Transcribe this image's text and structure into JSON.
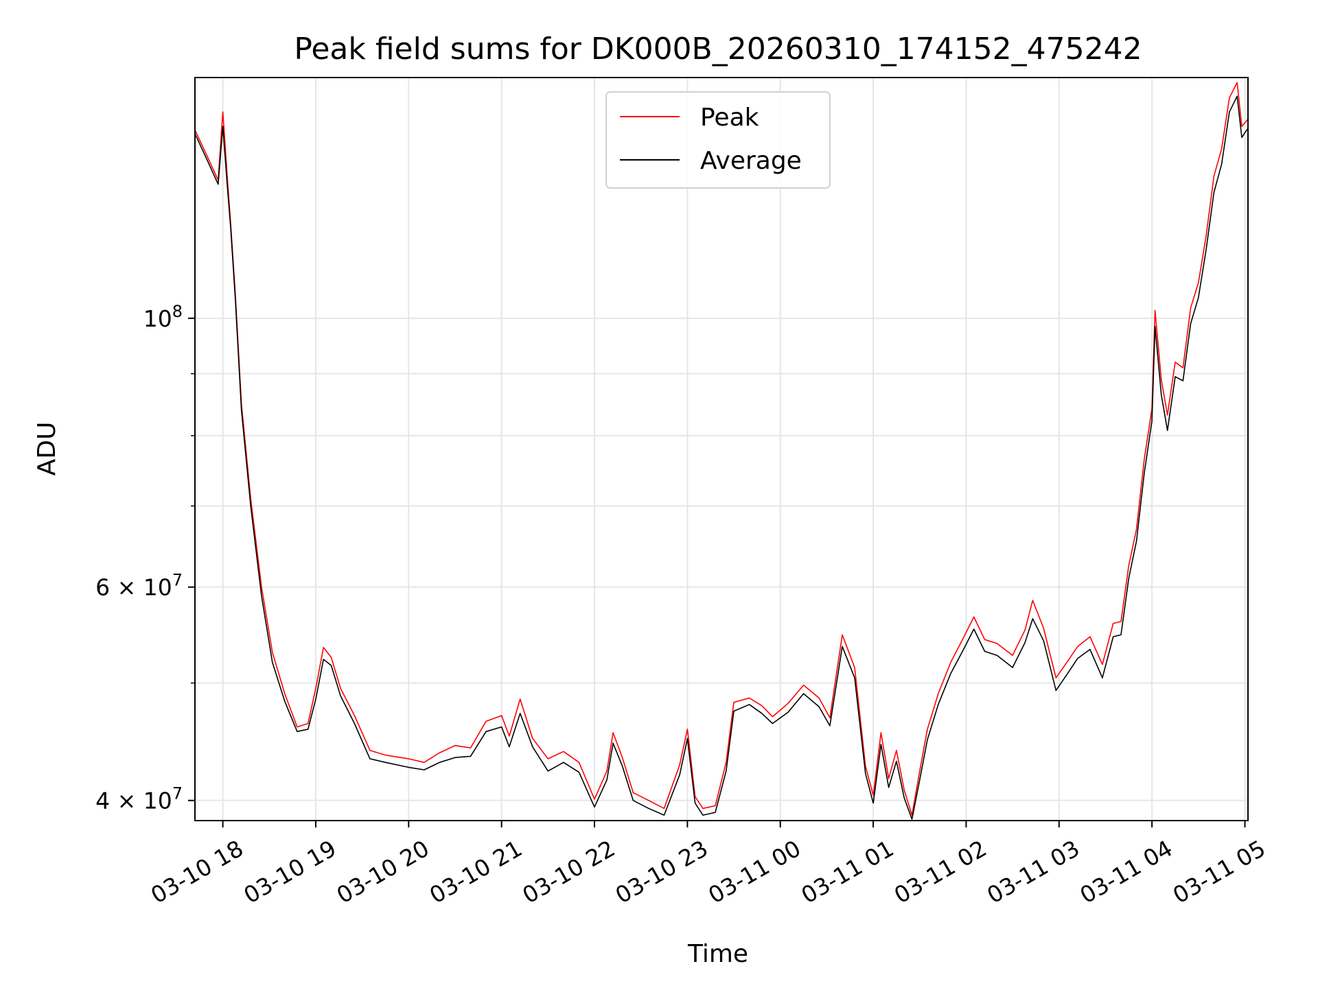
{
  "chart_data": {
    "type": "line",
    "title": "Peak field sums for DK000B_20260310_174152_475242",
    "xlabel": "Time",
    "ylabel": "ADU",
    "y_scale": "log",
    "ylim": [
      38500000,
      158000000
    ],
    "xlim": [
      "2026-03-10 17:42",
      "2026-03-11 05:02"
    ],
    "grid": true,
    "legend_position": "upper center",
    "x_ticks": [
      {
        "value": "2026-03-10 18:00",
        "label": "03-10 18"
      },
      {
        "value": "2026-03-10 19:00",
        "label": "03-10 19"
      },
      {
        "value": "2026-03-10 20:00",
        "label": "03-10 20"
      },
      {
        "value": "2026-03-10 21:00",
        "label": "03-10 21"
      },
      {
        "value": "2026-03-10 22:00",
        "label": "03-10 22"
      },
      {
        "value": "2026-03-10 23:00",
        "label": "03-10 23"
      },
      {
        "value": "2026-03-11 00:00",
        "label": "03-11 00"
      },
      {
        "value": "2026-03-11 01:00",
        "label": "03-11 01"
      },
      {
        "value": "2026-03-11 02:00",
        "label": "03-11 02"
      },
      {
        "value": "2026-03-11 03:00",
        "label": "03-11 03"
      },
      {
        "value": "2026-03-11 04:00",
        "label": "03-11 04"
      },
      {
        "value": "2026-03-11 05:00",
        "label": "03-11 05"
      }
    ],
    "y_ticks": [
      {
        "value": 40000000,
        "base": "4 × 10",
        "exp": "7"
      },
      {
        "value": 60000000,
        "base": "6 × 10",
        "exp": "7"
      },
      {
        "value": 100000000,
        "base": "10",
        "exp": "8"
      }
    ],
    "y_minor_ticks": [
      50000000,
      70000000,
      80000000,
      90000000
    ],
    "series": [
      {
        "name": "Peak",
        "color": "#ff0000",
        "points": [
          [
            "2026-03-10 17:42",
            143000000
          ],
          [
            "2026-03-10 17:50",
            136000000
          ],
          [
            "2026-03-10 17:57",
            130000000
          ],
          [
            "2026-03-10 18:00",
            148000000
          ],
          [
            "2026-03-10 18:03",
            130000000
          ],
          [
            "2026-03-10 18:05",
            120000000
          ],
          [
            "2026-03-10 18:08",
            105000000
          ],
          [
            "2026-03-10 18:12",
            85000000
          ],
          [
            "2026-03-10 18:18",
            71000000
          ],
          [
            "2026-03-10 18:25",
            60000000
          ],
          [
            "2026-03-10 18:32",
            53000000
          ],
          [
            "2026-03-10 18:40",
            49000000
          ],
          [
            "2026-03-10 18:48",
            46000000
          ],
          [
            "2026-03-10 18:55",
            46300000
          ],
          [
            "2026-03-10 19:00",
            49500000
          ],
          [
            "2026-03-10 19:05",
            53500000
          ],
          [
            "2026-03-10 19:10",
            52500000
          ],
          [
            "2026-03-10 19:16",
            49500000
          ],
          [
            "2026-03-10 19:25",
            47000000
          ],
          [
            "2026-03-10 19:35",
            44000000
          ],
          [
            "2026-03-10 19:45",
            43600000
          ],
          [
            "2026-03-10 20:00",
            43300000
          ],
          [
            "2026-03-10 20:10",
            43000000
          ],
          [
            "2026-03-10 20:20",
            43800000
          ],
          [
            "2026-03-10 20:30",
            44400000
          ],
          [
            "2026-03-10 20:40",
            44200000
          ],
          [
            "2026-03-10 20:50",
            46500000
          ],
          [
            "2026-03-10 21:00",
            47000000
          ],
          [
            "2026-03-10 21:05",
            45200000
          ],
          [
            "2026-03-10 21:12",
            48500000
          ],
          [
            "2026-03-10 21:20",
            45000000
          ],
          [
            "2026-03-10 21:30",
            43300000
          ],
          [
            "2026-03-10 21:40",
            43900000
          ],
          [
            "2026-03-10 21:50",
            43000000
          ],
          [
            "2026-03-10 22:00",
            40100000
          ],
          [
            "2026-03-10 22:08",
            42300000
          ],
          [
            "2026-03-10 22:12",
            45500000
          ],
          [
            "2026-03-10 22:18",
            43400000
          ],
          [
            "2026-03-10 22:25",
            40600000
          ],
          [
            "2026-03-10 22:35",
            40000000
          ],
          [
            "2026-03-10 22:45",
            39400000
          ],
          [
            "2026-03-10 22:55",
            42800000
          ],
          [
            "2026-03-10 23:00",
            45800000
          ],
          [
            "2026-03-10 23:05",
            40300000
          ],
          [
            "2026-03-10 23:10",
            39400000
          ],
          [
            "2026-03-10 23:18",
            39600000
          ],
          [
            "2026-03-10 23:25",
            43000000
          ],
          [
            "2026-03-10 23:30",
            48200000
          ],
          [
            "2026-03-10 23:40",
            48600000
          ],
          [
            "2026-03-10 23:48",
            47900000
          ],
          [
            "2026-03-10 23:55",
            46900000
          ],
          [
            "2026-03-11 00:05",
            48100000
          ],
          [
            "2026-03-11 00:15",
            49800000
          ],
          [
            "2026-03-11 00:25",
            48600000
          ],
          [
            "2026-03-11 00:32",
            46800000
          ],
          [
            "2026-03-11 00:40",
            54800000
          ],
          [
            "2026-03-11 00:48",
            51500000
          ],
          [
            "2026-03-11 00:55",
            42700000
          ],
          [
            "2026-03-11 01:00",
            40400000
          ],
          [
            "2026-03-11 01:05",
            45500000
          ],
          [
            "2026-03-11 01:10",
            41700000
          ],
          [
            "2026-03-11 01:15",
            44000000
          ],
          [
            "2026-03-11 01:20",
            40800000
          ],
          [
            "2026-03-11 01:25",
            38900000
          ],
          [
            "2026-03-11 01:30",
            42300000
          ],
          [
            "2026-03-11 01:35",
            45800000
          ],
          [
            "2026-03-11 01:42",
            49000000
          ],
          [
            "2026-03-11 01:50",
            52000000
          ],
          [
            "2026-03-11 01:58",
            54400000
          ],
          [
            "2026-03-11 02:05",
            56700000
          ],
          [
            "2026-03-11 02:12",
            54300000
          ],
          [
            "2026-03-11 02:20",
            53900000
          ],
          [
            "2026-03-11 02:30",
            52700000
          ],
          [
            "2026-03-11 02:38",
            55300000
          ],
          [
            "2026-03-11 02:43",
            58500000
          ],
          [
            "2026-03-11 02:50",
            55500000
          ],
          [
            "2026-03-11 02:58",
            50500000
          ],
          [
            "2026-03-11 03:05",
            52000000
          ],
          [
            "2026-03-11 03:12",
            53600000
          ],
          [
            "2026-03-11 03:20",
            54600000
          ],
          [
            "2026-03-11 03:28",
            51800000
          ],
          [
            "2026-03-11 03:35",
            56000000
          ],
          [
            "2026-03-11 03:40",
            56200000
          ],
          [
            "2026-03-11 03:45",
            62500000
          ],
          [
            "2026-03-11 03:50",
            67000000
          ],
          [
            "2026-03-11 03:55",
            76500000
          ],
          [
            "2026-03-11 04:00",
            84200000
          ],
          [
            "2026-03-11 04:02",
            101500000
          ],
          [
            "2026-03-11 04:06",
            89000000
          ],
          [
            "2026-03-11 04:10",
            83200000
          ],
          [
            "2026-03-11 04:15",
            92000000
          ],
          [
            "2026-03-11 04:20",
            91000000
          ],
          [
            "2026-03-11 04:25",
            102000000
          ],
          [
            "2026-03-11 04:30",
            107000000
          ],
          [
            "2026-03-11 04:35",
            117000000
          ],
          [
            "2026-03-11 04:40",
            131000000
          ],
          [
            "2026-03-11 04:45",
            138000000
          ],
          [
            "2026-03-11 04:50",
            152000000
          ],
          [
            "2026-03-11 04:55",
            156500000
          ],
          [
            "2026-03-11 04:58",
            144000000
          ],
          [
            "2026-03-11 05:02",
            146000000
          ]
        ]
      },
      {
        "name": "Average",
        "color": "#000000",
        "points": [
          [
            "2026-03-10 17:42",
            142000000
          ],
          [
            "2026-03-10 17:50",
            135000000
          ],
          [
            "2026-03-10 17:57",
            129000000
          ],
          [
            "2026-03-10 18:00",
            144000000
          ],
          [
            "2026-03-10 18:03",
            128000000
          ],
          [
            "2026-03-10 18:05",
            119000000
          ],
          [
            "2026-03-10 18:08",
            104000000
          ],
          [
            "2026-03-10 18:12",
            84000000
          ],
          [
            "2026-03-10 18:18",
            70000000
          ],
          [
            "2026-03-10 18:25",
            59000000
          ],
          [
            "2026-03-10 18:32",
            52000000
          ],
          [
            "2026-03-10 18:40",
            48300000
          ],
          [
            "2026-03-10 18:48",
            45600000
          ],
          [
            "2026-03-10 18:55",
            45800000
          ],
          [
            "2026-03-10 19:00",
            48500000
          ],
          [
            "2026-03-10 19:05",
            52300000
          ],
          [
            "2026-03-10 19:10",
            51700000
          ],
          [
            "2026-03-10 19:16",
            48800000
          ],
          [
            "2026-03-10 19:25",
            46300000
          ],
          [
            "2026-03-10 19:35",
            43300000
          ],
          [
            "2026-03-10 19:45",
            43000000
          ],
          [
            "2026-03-10 20:00",
            42600000
          ],
          [
            "2026-03-10 20:10",
            42400000
          ],
          [
            "2026-03-10 20:20",
            43000000
          ],
          [
            "2026-03-10 20:30",
            43400000
          ],
          [
            "2026-03-10 20:40",
            43500000
          ],
          [
            "2026-03-10 20:50",
            45600000
          ],
          [
            "2026-03-10 21:00",
            46000000
          ],
          [
            "2026-03-10 21:05",
            44300000
          ],
          [
            "2026-03-10 21:12",
            47200000
          ],
          [
            "2026-03-10 21:20",
            44300000
          ],
          [
            "2026-03-10 21:30",
            42300000
          ],
          [
            "2026-03-10 21:40",
            43000000
          ],
          [
            "2026-03-10 21:50",
            42200000
          ],
          [
            "2026-03-10 22:00",
            39500000
          ],
          [
            "2026-03-10 22:08",
            41600000
          ],
          [
            "2026-03-10 22:12",
            44600000
          ],
          [
            "2026-03-10 22:18",
            42700000
          ],
          [
            "2026-03-10 22:25",
            40000000
          ],
          [
            "2026-03-10 22:35",
            39400000
          ],
          [
            "2026-03-10 22:45",
            38900000
          ],
          [
            "2026-03-10 22:55",
            42000000
          ],
          [
            "2026-03-10 23:00",
            45000000
          ],
          [
            "2026-03-10 23:05",
            39800000
          ],
          [
            "2026-03-10 23:10",
            38900000
          ],
          [
            "2026-03-10 23:18",
            39100000
          ],
          [
            "2026-03-10 23:25",
            42300000
          ],
          [
            "2026-03-10 23:30",
            47400000
          ],
          [
            "2026-03-10 23:40",
            48000000
          ],
          [
            "2026-03-10 23:48",
            47200000
          ],
          [
            "2026-03-10 23:55",
            46300000
          ],
          [
            "2026-03-11 00:05",
            47300000
          ],
          [
            "2026-03-11 00:15",
            49000000
          ],
          [
            "2026-03-11 00:25",
            47800000
          ],
          [
            "2026-03-11 00:32",
            46100000
          ],
          [
            "2026-03-11 00:40",
            53600000
          ],
          [
            "2026-03-11 00:48",
            50500000
          ],
          [
            "2026-03-11 00:55",
            42100000
          ],
          [
            "2026-03-11 01:00",
            39800000
          ],
          [
            "2026-03-11 01:05",
            44500000
          ],
          [
            "2026-03-11 01:10",
            41000000
          ],
          [
            "2026-03-11 01:15",
            43100000
          ],
          [
            "2026-03-11 01:20",
            40200000
          ],
          [
            "2026-03-11 01:25",
            38600000
          ],
          [
            "2026-03-11 01:30",
            41600000
          ],
          [
            "2026-03-11 01:35",
            44900000
          ],
          [
            "2026-03-11 01:42",
            48000000
          ],
          [
            "2026-03-11 01:50",
            50900000
          ],
          [
            "2026-03-11 01:58",
            53200000
          ],
          [
            "2026-03-11 02:05",
            55400000
          ],
          [
            "2026-03-11 02:12",
            53100000
          ],
          [
            "2026-03-11 02:20",
            52700000
          ],
          [
            "2026-03-11 02:30",
            51500000
          ],
          [
            "2026-03-11 02:38",
            54000000
          ],
          [
            "2026-03-11 02:43",
            56500000
          ],
          [
            "2026-03-11 02:50",
            54200000
          ],
          [
            "2026-03-11 02:58",
            49300000
          ],
          [
            "2026-03-11 03:05",
            50800000
          ],
          [
            "2026-03-11 03:12",
            52400000
          ],
          [
            "2026-03-11 03:20",
            53300000
          ],
          [
            "2026-03-11 03:28",
            50500000
          ],
          [
            "2026-03-11 03:35",
            54600000
          ],
          [
            "2026-03-11 03:40",
            54800000
          ],
          [
            "2026-03-11 03:45",
            61000000
          ],
          [
            "2026-03-11 03:50",
            65500000
          ],
          [
            "2026-03-11 03:55",
            74500000
          ],
          [
            "2026-03-11 04:00",
            82300000
          ],
          [
            "2026-03-11 04:02",
            98500000
          ],
          [
            "2026-03-11 04:06",
            86500000
          ],
          [
            "2026-03-11 04:10",
            80800000
          ],
          [
            "2026-03-11 04:15",
            89500000
          ],
          [
            "2026-03-11 04:20",
            88800000
          ],
          [
            "2026-03-11 04:25",
            99000000
          ],
          [
            "2026-03-11 04:30",
            104000000
          ],
          [
            "2026-03-11 04:35",
            114000000
          ],
          [
            "2026-03-11 04:40",
            127000000
          ],
          [
            "2026-03-11 04:45",
            134000000
          ],
          [
            "2026-03-11 04:50",
            148000000
          ],
          [
            "2026-03-11 04:55",
            152500000
          ],
          [
            "2026-03-11 04:58",
            141000000
          ],
          [
            "2026-03-11 05:02",
            143500000
          ]
        ]
      }
    ]
  }
}
